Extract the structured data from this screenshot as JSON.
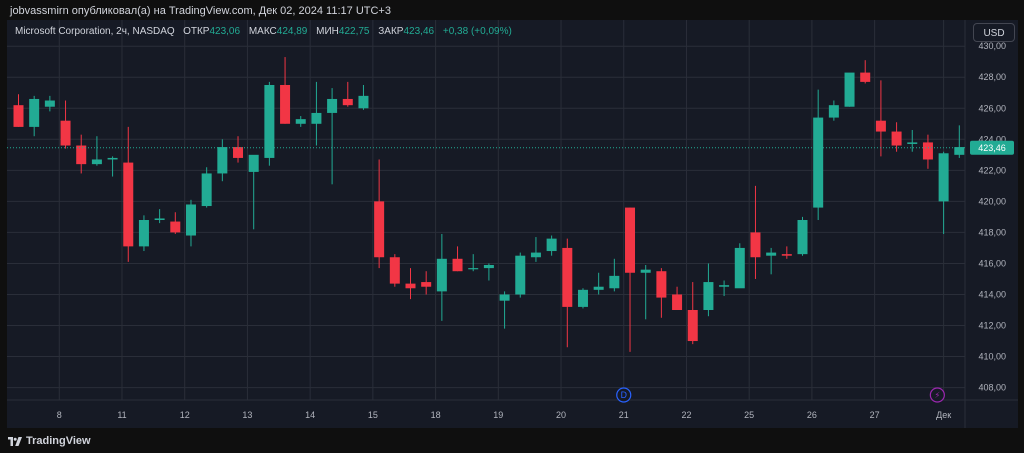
{
  "caption": "jobvassmirn опубликовал(а) на TradingView.com, Дек 02, 2024 11:17 UTC+3",
  "legend": {
    "symbol": "Microsoft Corporation, 2ч, NASDAQ",
    "open_label": "ОТКР",
    "open": "423,06",
    "high_label": "МАКС",
    "high": "424,89",
    "low_label": "МИН",
    "low": "422,75",
    "close_label": "ЗАКР",
    "close": "423,46",
    "change": "+0,38 (+0,09%)"
  },
  "currency_button": "USD",
  "footer": {
    "brand": "TradingView"
  },
  "colors": {
    "up": "#22ab94",
    "down": "#f23645",
    "grid": "#2a2e39",
    "text": "#b2b5be",
    "background": "#161a25"
  },
  "chart_data": {
    "type": "candlestick",
    "title": "Microsoft Corporation, 2ч, NASDAQ",
    "ylim": [
      407.2,
      430.4
    ],
    "y_ticks": [
      {
        "value": 408,
        "label": "408,00"
      },
      {
        "value": 410,
        "label": "410,00"
      },
      {
        "value": 412,
        "label": "412,00"
      },
      {
        "value": 414,
        "label": "414,00"
      },
      {
        "value": 416,
        "label": "416,00"
      },
      {
        "value": 418,
        "label": "418,00"
      },
      {
        "value": 420,
        "label": "420,00"
      },
      {
        "value": 422,
        "label": "422,00"
      },
      {
        "value": 424,
        "label": "424,00"
      },
      {
        "value": 426,
        "label": "426,00"
      },
      {
        "value": 428,
        "label": "428,00"
      },
      {
        "value": 430,
        "label": "430,00"
      }
    ],
    "x_ticks": [
      {
        "index": 2.6,
        "label": "8"
      },
      {
        "index": 6.6,
        "label": "11"
      },
      {
        "index": 10.6,
        "label": "12"
      },
      {
        "index": 14.6,
        "label": "13"
      },
      {
        "index": 18.6,
        "label": "14"
      },
      {
        "index": 22.6,
        "label": "15"
      },
      {
        "index": 26.6,
        "label": "18"
      },
      {
        "index": 30.6,
        "label": "19"
      },
      {
        "index": 34.6,
        "label": "20"
      },
      {
        "index": 38.6,
        "label": "21"
      },
      {
        "index": 42.6,
        "label": "22"
      },
      {
        "index": 46.6,
        "label": "25"
      },
      {
        "index": 50.6,
        "label": "26"
      },
      {
        "index": 54.6,
        "label": "27"
      },
      {
        "index": 59.0,
        "label": "Дек"
      }
    ],
    "last_price": 423.46,
    "last_price_label": "423,46",
    "events": [
      {
        "index": 38.6,
        "label": "D"
      },
      {
        "index": 58.6,
        "label": "⚡"
      }
    ],
    "candles": [
      {
        "o": 426.2,
        "h": 426.9,
        "l": 424.8,
        "c": 424.8
      },
      {
        "o": 424.8,
        "h": 426.8,
        "l": 424.2,
        "c": 426.6
      },
      {
        "o": 426.1,
        "h": 426.8,
        "l": 425.8,
        "c": 426.5
      },
      {
        "o": 425.2,
        "h": 426.5,
        "l": 423.4,
        "c": 423.6
      },
      {
        "o": 423.6,
        "h": 424.3,
        "l": 421.8,
        "c": 422.4
      },
      {
        "o": 422.4,
        "h": 424.2,
        "l": 422.3,
        "c": 422.7
      },
      {
        "o": 422.7,
        "h": 422.9,
        "l": 421.6,
        "c": 422.8
      },
      {
        "o": 422.5,
        "h": 424.8,
        "l": 416.1,
        "c": 417.1
      },
      {
        "o": 417.1,
        "h": 419.1,
        "l": 416.8,
        "c": 418.8
      },
      {
        "o": 418.8,
        "h": 419.5,
        "l": 418.6,
        "c": 418.9
      },
      {
        "o": 418.7,
        "h": 419.3,
        "l": 417.9,
        "c": 418.0
      },
      {
        "o": 417.8,
        "h": 420.1,
        "l": 417.1,
        "c": 419.8
      },
      {
        "o": 419.7,
        "h": 422.2,
        "l": 419.6,
        "c": 421.8
      },
      {
        "o": 421.8,
        "h": 424.0,
        "l": 421.3,
        "c": 423.5
      },
      {
        "o": 423.5,
        "h": 424.2,
        "l": 422.5,
        "c": 422.8
      },
      {
        "o": 421.9,
        "h": 422.9,
        "l": 418.2,
        "c": 423.0
      },
      {
        "o": 422.8,
        "h": 427.7,
        "l": 422.3,
        "c": 427.5
      },
      {
        "o": 427.5,
        "h": 429.3,
        "l": 425.0,
        "c": 425.0
      },
      {
        "o": 425.0,
        "h": 425.5,
        "l": 424.8,
        "c": 425.3
      },
      {
        "o": 425.0,
        "h": 427.7,
        "l": 423.6,
        "c": 425.7
      },
      {
        "o": 425.7,
        "h": 427.3,
        "l": 421.1,
        "c": 426.6
      },
      {
        "o": 426.6,
        "h": 427.7,
        "l": 426.1,
        "c": 426.2
      },
      {
        "o": 426.0,
        "h": 427.5,
        "l": 425.9,
        "c": 426.8
      },
      {
        "o": 420.0,
        "h": 422.7,
        "l": 415.7,
        "c": 416.4
      },
      {
        "o": 416.4,
        "h": 416.6,
        "l": 414.5,
        "c": 414.7
      },
      {
        "o": 414.7,
        "h": 415.7,
        "l": 413.7,
        "c": 414.4
      },
      {
        "o": 414.8,
        "h": 415.5,
        "l": 414.0,
        "c": 414.5
      },
      {
        "o": 414.2,
        "h": 417.9,
        "l": 412.3,
        "c": 416.3
      },
      {
        "o": 416.3,
        "h": 417.1,
        "l": 415.5,
        "c": 415.5
      },
      {
        "o": 415.7,
        "h": 416.6,
        "l": 415.5,
        "c": 415.7
      },
      {
        "o": 415.7,
        "h": 416.0,
        "l": 414.9,
        "c": 415.9
      },
      {
        "o": 413.6,
        "h": 414.2,
        "l": 411.8,
        "c": 414.0
      },
      {
        "o": 414.0,
        "h": 416.7,
        "l": 413.8,
        "c": 416.5
      },
      {
        "o": 416.4,
        "h": 417.7,
        "l": 416.1,
        "c": 416.7
      },
      {
        "o": 416.8,
        "h": 417.8,
        "l": 416.5,
        "c": 417.6
      },
      {
        "o": 417.0,
        "h": 417.6,
        "l": 410.6,
        "c": 413.2
      },
      {
        "o": 413.2,
        "h": 414.4,
        "l": 413.1,
        "c": 414.3
      },
      {
        "o": 414.3,
        "h": 415.4,
        "l": 414.0,
        "c": 414.5
      },
      {
        "o": 414.4,
        "h": 416.3,
        "l": 414.2,
        "c": 415.2
      },
      {
        "o": 419.6,
        "h": 419.6,
        "l": 410.3,
        "c": 415.4
      },
      {
        "o": 415.4,
        "h": 415.9,
        "l": 412.4,
        "c": 415.6
      },
      {
        "o": 415.5,
        "h": 415.7,
        "l": 412.5,
        "c": 413.8
      },
      {
        "o": 414.0,
        "h": 414.5,
        "l": 413.0,
        "c": 413.0
      },
      {
        "o": 413.0,
        "h": 414.8,
        "l": 410.8,
        "c": 411.0
      },
      {
        "o": 413.0,
        "h": 416.0,
        "l": 412.6,
        "c": 414.8
      },
      {
        "o": 414.5,
        "h": 414.9,
        "l": 413.9,
        "c": 414.6
      },
      {
        "o": 414.4,
        "h": 417.3,
        "l": 414.5,
        "c": 417.0
      },
      {
        "o": 418.0,
        "h": 421.0,
        "l": 415.0,
        "c": 416.4
      },
      {
        "o": 416.5,
        "h": 417.0,
        "l": 415.3,
        "c": 416.7
      },
      {
        "o": 416.6,
        "h": 417.1,
        "l": 416.3,
        "c": 416.5
      },
      {
        "o": 416.6,
        "h": 419.0,
        "l": 416.5,
        "c": 418.8
      },
      {
        "o": 419.6,
        "h": 427.2,
        "l": 418.8,
        "c": 425.4
      },
      {
        "o": 425.4,
        "h": 426.5,
        "l": 425.2,
        "c": 426.2
      },
      {
        "o": 426.1,
        "h": 428.2,
        "l": 426.1,
        "c": 428.3
      },
      {
        "o": 428.3,
        "h": 429.1,
        "l": 427.6,
        "c": 427.7
      },
      {
        "o": 425.2,
        "h": 427.8,
        "l": 422.9,
        "c": 424.5
      },
      {
        "o": 424.5,
        "h": 425.1,
        "l": 423.2,
        "c": 423.6
      },
      {
        "o": 423.7,
        "h": 424.6,
        "l": 423.2,
        "c": 423.8
      },
      {
        "o": 423.8,
        "h": 424.3,
        "l": 422.1,
        "c": 422.7
      },
      {
        "o": 420.0,
        "h": 423.2,
        "l": 417.9,
        "c": 423.1
      },
      {
        "o": 423.0,
        "h": 424.9,
        "l": 422.8,
        "c": 423.5
      }
    ]
  }
}
